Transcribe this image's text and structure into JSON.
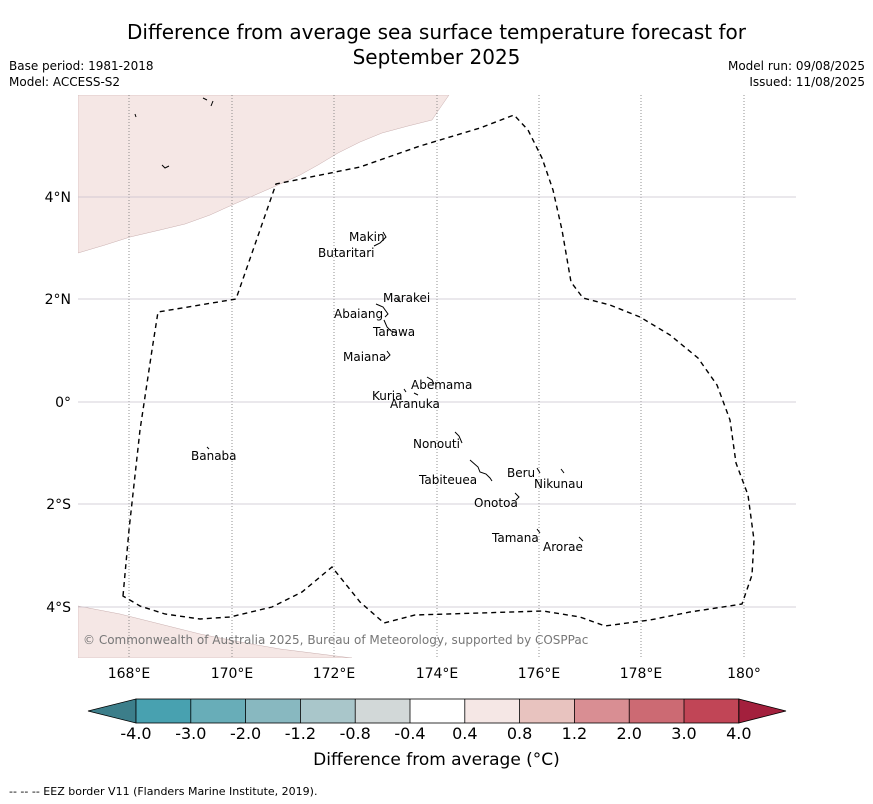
{
  "title_line1": "Difference from average sea surface temperature forecast for",
  "title_line2": "September 2025",
  "base_period": "Base period: 1981-2018",
  "model": "Model: ACCESS-S2",
  "model_run": "Model run: 09/08/2025",
  "issued": "Issued: 11/08/2025",
  "copyright": "© Commonwealth of Australia 2025, Bureau of Meteorology, supported by COSPPac",
  "lon_labels": [
    "168°E",
    "170°E",
    "172°E",
    "174°E",
    "176°E",
    "178°E",
    "180°"
  ],
  "lat_labels": [
    "4°N",
    "2°N",
    "0°",
    "2°S",
    "4°S"
  ],
  "islands": [
    {
      "name": "Makin"
    },
    {
      "name": "Butaritari"
    },
    {
      "name": "Marakei"
    },
    {
      "name": "Abaiang"
    },
    {
      "name": "Tarawa"
    },
    {
      "name": "Maiana"
    },
    {
      "name": "Abemama"
    },
    {
      "name": "Kuria"
    },
    {
      "name": "Aranuka"
    },
    {
      "name": "Nonouti"
    },
    {
      "name": "Banaba"
    },
    {
      "name": "Beru"
    },
    {
      "name": "Nikunau"
    },
    {
      "name": "Tabiteuea"
    },
    {
      "name": "Onotoa"
    },
    {
      "name": "Tamana"
    },
    {
      "name": "Arorae"
    }
  ],
  "colorbar": {
    "labels": [
      "-4.0",
      "-3.0",
      "-2.0",
      "-1.2",
      "-0.8",
      "-0.4",
      "0.4",
      "0.8",
      "1.2",
      "2.0",
      "3.0",
      "4.0"
    ],
    "colors": [
      "#48a1b0",
      "#68adb8",
      "#88b8c0",
      "#a9c6ca",
      "#d2d8d8",
      "#ffffff",
      "#f5e7e5",
      "#e8c3bf",
      "#d98e93",
      "#cc6a73",
      "#c14556"
    ],
    "under_color": "#3c7e8a",
    "over_color": "#a3203d",
    "title": "Difference from average (°C)"
  },
  "footer_note": "--  --  -- EEZ border V11 (Flanders Marine Institute, 2019).",
  "colors": {
    "land": "#f5e7e5",
    "grid": "#c9c0cc",
    "eez": "#000000"
  }
}
